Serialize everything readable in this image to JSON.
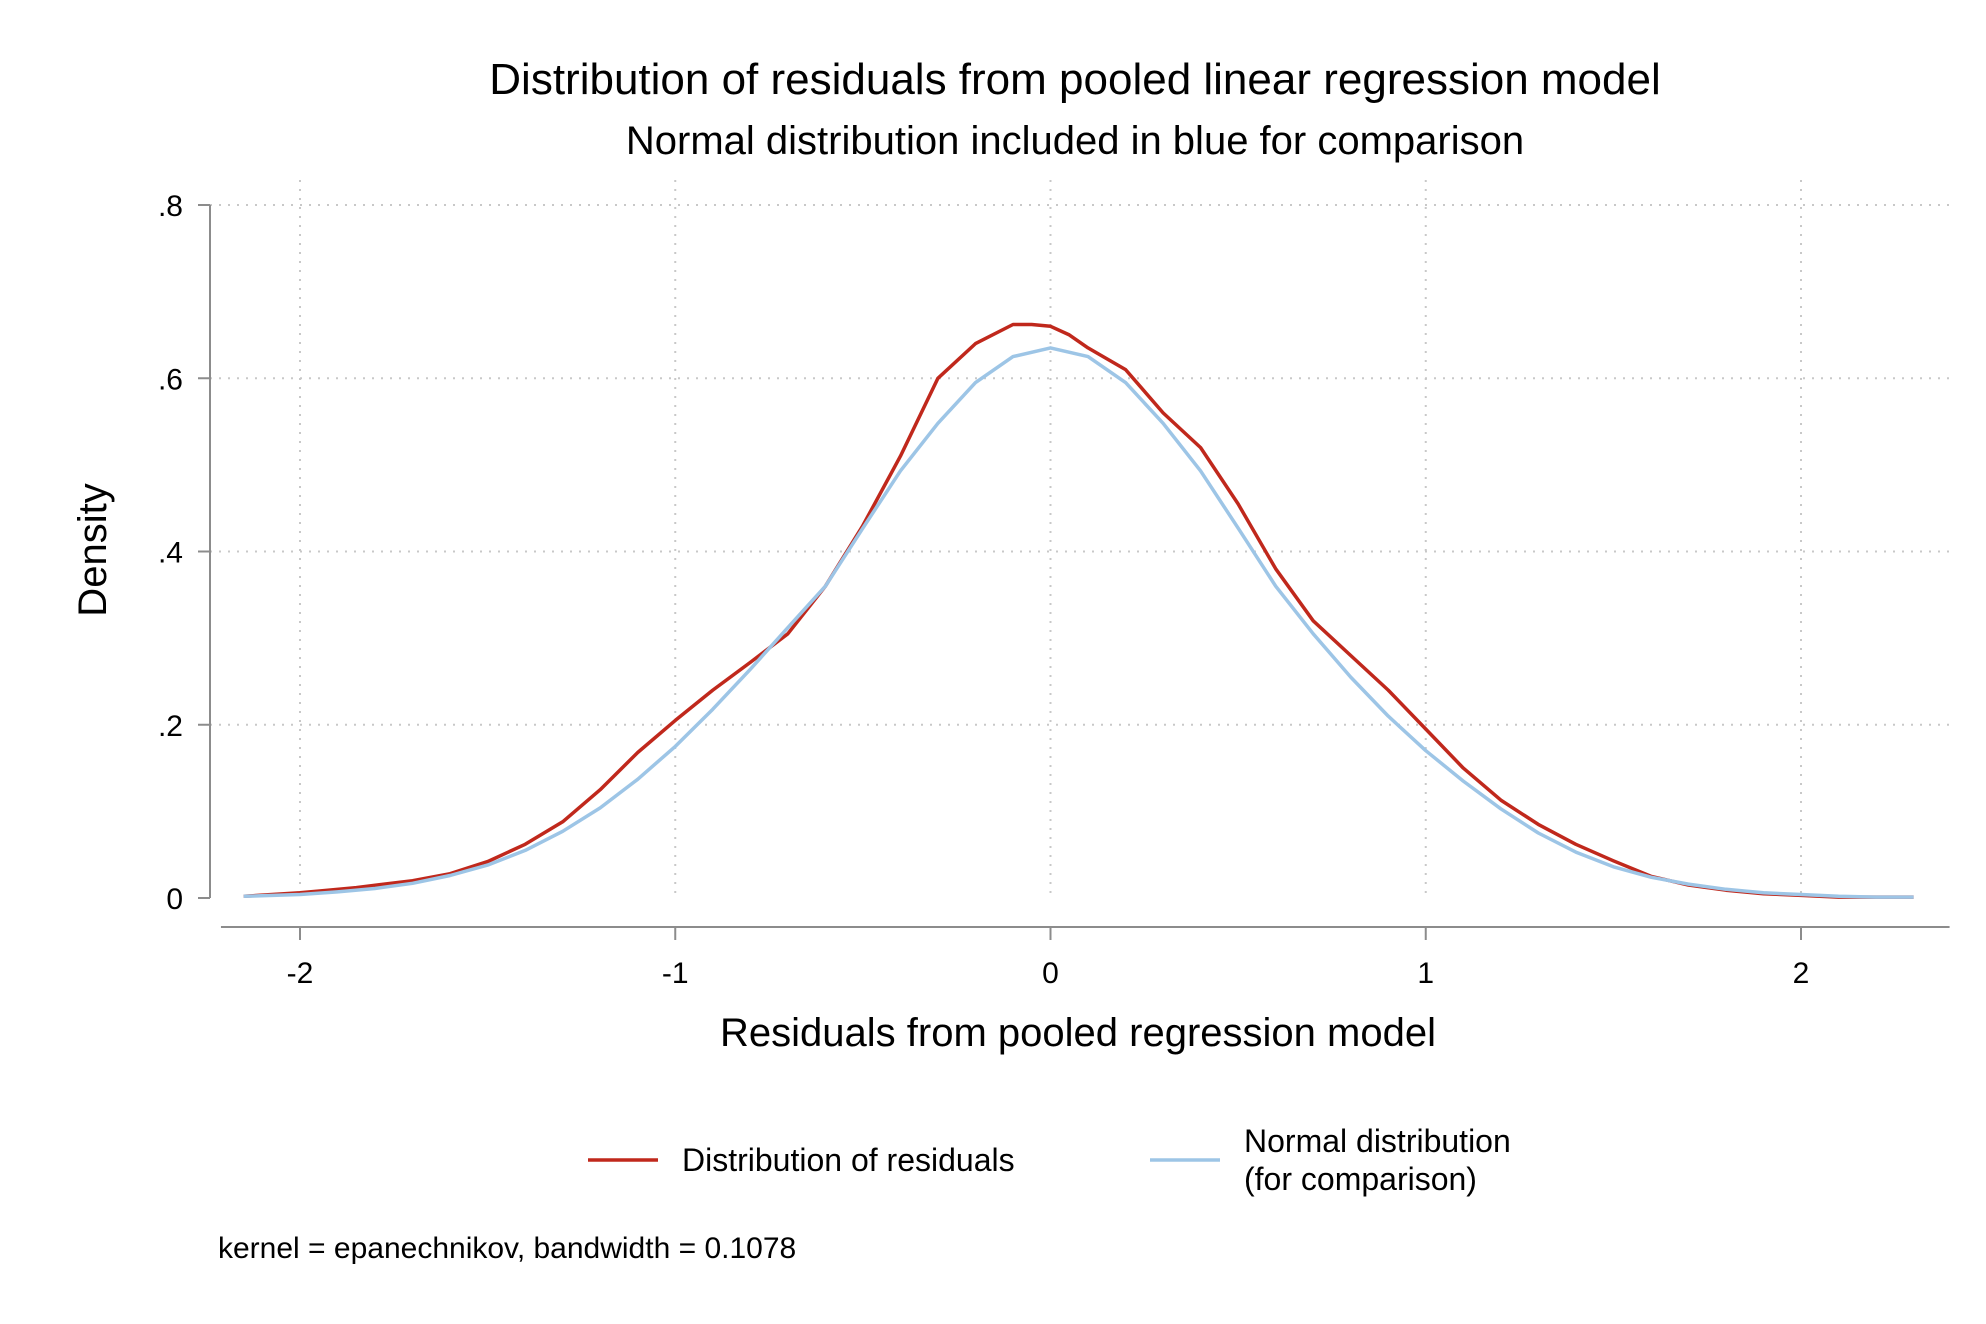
{
  "chart_data": {
    "type": "line",
    "title": "Distribution of residuals from pooled linear regression model",
    "subtitle": "Normal distribution included in blue for comparison",
    "xlabel": "Residuals from pooled regression model",
    "ylabel": "Density",
    "xlim": [
      -2.2,
      2.3
    ],
    "ylim": [
      0,
      0.8
    ],
    "x_ticks": [
      -2,
      -1,
      0,
      1,
      2
    ],
    "x_tick_labels": [
      "-2",
      "-1",
      "0",
      "1",
      "2"
    ],
    "y_ticks": [
      0,
      0.2,
      0.4,
      0.6,
      0.8
    ],
    "y_tick_labels": [
      "0",
      ".2",
      ".4",
      ".6",
      ".8"
    ],
    "grid": true,
    "legend_position": "bottom",
    "note": "kernel = epanechnikov, bandwidth = 0.1078",
    "series": [
      {
        "name": "Distribution of residuals",
        "color": "#c0281c",
        "x": [
          -2.15,
          -2.0,
          -1.85,
          -1.7,
          -1.6,
          -1.5,
          -1.4,
          -1.3,
          -1.2,
          -1.1,
          -1.0,
          -0.9,
          -0.8,
          -0.7,
          -0.6,
          -0.5,
          -0.4,
          -0.3,
          -0.2,
          -0.1,
          -0.05,
          0.0,
          0.05,
          0.1,
          0.2,
          0.3,
          0.4,
          0.5,
          0.6,
          0.7,
          0.8,
          0.9,
          1.0,
          1.1,
          1.2,
          1.3,
          1.4,
          1.5,
          1.6,
          1.7,
          1.8,
          1.9,
          2.0,
          2.1,
          2.2,
          2.3
        ],
        "y": [
          0.002,
          0.006,
          0.012,
          0.02,
          0.028,
          0.042,
          0.062,
          0.088,
          0.125,
          0.168,
          0.205,
          0.24,
          0.272,
          0.305,
          0.36,
          0.43,
          0.51,
          0.6,
          0.64,
          0.662,
          0.662,
          0.66,
          0.65,
          0.635,
          0.61,
          0.56,
          0.52,
          0.455,
          0.38,
          0.32,
          0.28,
          0.24,
          0.195,
          0.15,
          0.113,
          0.085,
          0.062,
          0.043,
          0.025,
          0.015,
          0.009,
          0.005,
          0.003,
          0.001,
          0.001,
          0.001
        ]
      },
      {
        "name": "Normal distribution\n(for comparison)",
        "color": "#9dc5e6",
        "x": [
          -2.15,
          -2.0,
          -1.9,
          -1.8,
          -1.7,
          -1.6,
          -1.5,
          -1.4,
          -1.3,
          -1.2,
          -1.1,
          -1.0,
          -0.9,
          -0.8,
          -0.7,
          -0.6,
          -0.5,
          -0.4,
          -0.3,
          -0.2,
          -0.1,
          0.0,
          0.1,
          0.2,
          0.3,
          0.4,
          0.5,
          0.6,
          0.7,
          0.8,
          0.9,
          1.0,
          1.1,
          1.2,
          1.3,
          1.4,
          1.5,
          1.6,
          1.7,
          1.8,
          1.9,
          2.0,
          2.1,
          2.2,
          2.3
        ],
        "y": [
          0.002,
          0.004,
          0.007,
          0.011,
          0.017,
          0.026,
          0.038,
          0.055,
          0.077,
          0.104,
          0.137,
          0.175,
          0.218,
          0.264,
          0.312,
          0.36,
          0.427,
          0.493,
          0.548,
          0.595,
          0.625,
          0.635,
          0.625,
          0.595,
          0.548,
          0.493,
          0.427,
          0.36,
          0.305,
          0.255,
          0.21,
          0.17,
          0.135,
          0.103,
          0.075,
          0.053,
          0.036,
          0.024,
          0.016,
          0.01,
          0.006,
          0.004,
          0.002,
          0.001,
          0.001
        ]
      }
    ]
  }
}
